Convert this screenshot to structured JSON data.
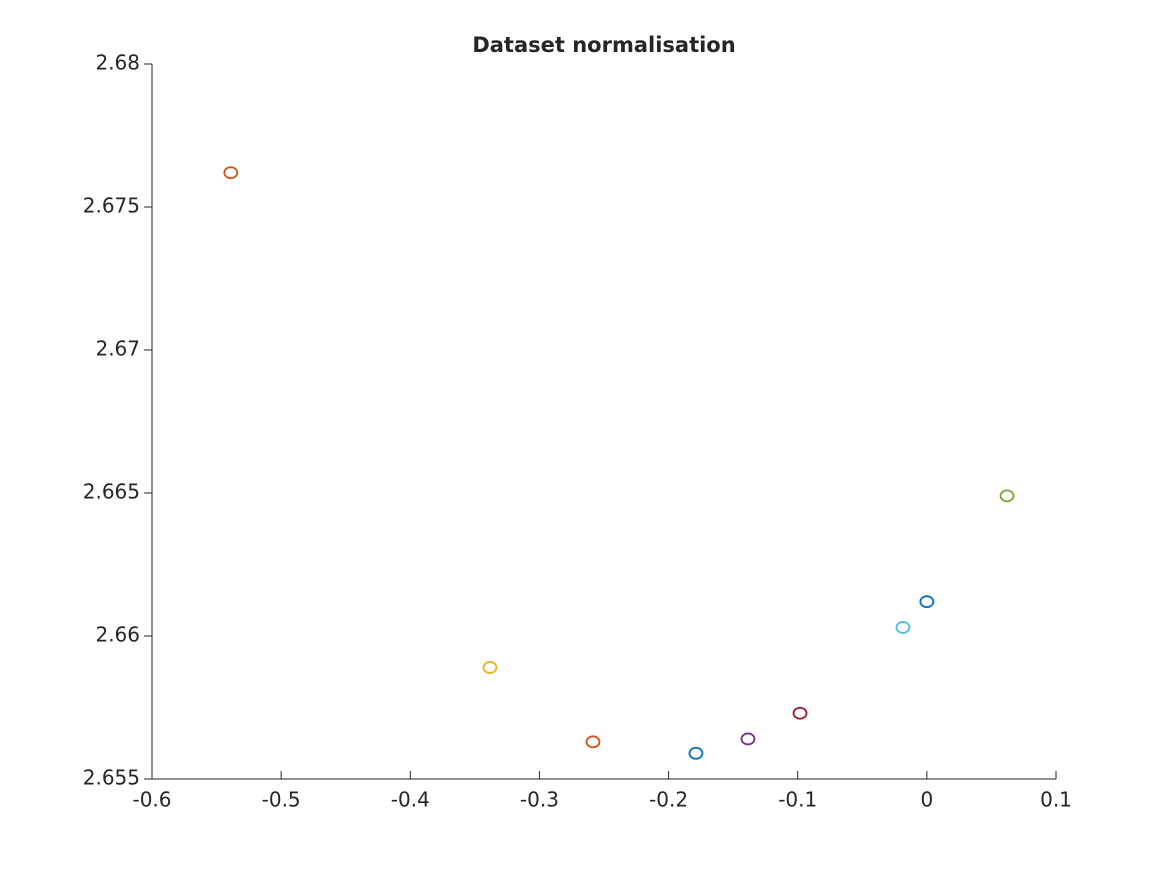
{
  "chart_data": {
    "type": "scatter",
    "title": "Dataset normalisation",
    "x": [
      -0.539,
      -0.3383,
      -0.2585,
      -0.1788,
      -0.1385,
      -0.0982,
      -0.0185,
      0.0,
      0.0621
    ],
    "values": [
      2.6762,
      2.6589,
      2.6563,
      2.6559,
      2.6564,
      2.6573,
      2.6603,
      2.6612,
      2.6649
    ],
    "colors": [
      "#D95319",
      "#EDB120",
      "#D95319",
      "#0072BD",
      "#7E2F8E",
      "#A2142F",
      "#4DBEEE",
      "#0072BD",
      "#77AC30"
    ],
    "xlim": [
      -0.6,
      0.1
    ],
    "xticks": [
      -0.6,
      -0.5,
      -0.4,
      -0.3,
      -0.2,
      -0.1,
      0,
      0.1
    ],
    "ylim": [
      2.655,
      2.68
    ],
    "yticks": [
      2.655,
      2.66,
      2.665,
      2.67,
      2.675,
      2.68
    ],
    "grid": false
  }
}
